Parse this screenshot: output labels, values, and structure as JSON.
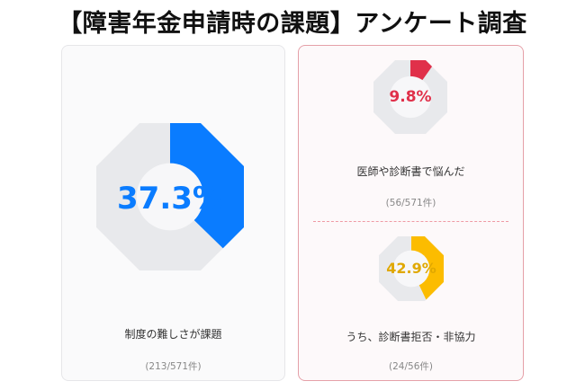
{
  "title": "【障害年金申請時の課題】アンケート調査",
  "colors": {
    "blue": "#0a7cff",
    "red": "#e0304a",
    "yellow": "#fcbc00",
    "track": "#e8e9ec"
  },
  "chart_data": [
    {
      "type": "pie",
      "values": [
        37.3
      ],
      "value_label": "37.3%",
      "label": "制度の難しさが課題",
      "count": "(213/571件)",
      "color": "#0a7cff"
    },
    {
      "type": "pie",
      "values": [
        9.8
      ],
      "value_label": "9.8%",
      "label": "医師や診断書で悩んだ",
      "count": "(56/571件)",
      "color": "#e0304a"
    },
    {
      "type": "pie",
      "values": [
        42.9
      ],
      "value_label": "42.9%",
      "label": "うち、診断書拒否・非協力",
      "count": "(24/56件)",
      "color": "#fcbc00"
    }
  ]
}
